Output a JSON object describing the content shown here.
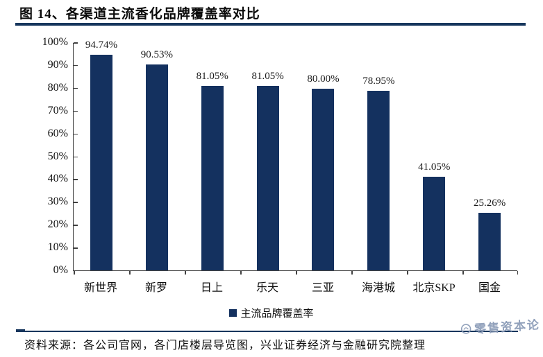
{
  "header": {
    "title": "图 14、各渠道主流香化品牌覆盖率对比"
  },
  "chart_data": {
    "type": "bar",
    "title": "各渠道主流香化品牌覆盖率对比",
    "categories": [
      "新世界",
      "新罗",
      "日上",
      "乐天",
      "三亚",
      "海港城",
      "北京SKP",
      "国金"
    ],
    "values": [
      94.74,
      90.53,
      81.05,
      81.05,
      80.0,
      78.95,
      41.05,
      25.26
    ],
    "value_labels": [
      "94.74%",
      "90.53%",
      "81.05%",
      "81.05%",
      "80.00%",
      "78.95%",
      "41.05%",
      "25.26%"
    ],
    "series_name": "主流品牌覆盖率",
    "xlabel": "",
    "ylabel": "",
    "ylim": [
      0,
      100
    ],
    "ytick_step": 10,
    "yticks": [
      "0%",
      "10%",
      "20%",
      "30%",
      "40%",
      "50%",
      "60%",
      "70%",
      "80%",
      "90%",
      "100%"
    ],
    "grid": false,
    "legend_position": "bottom",
    "bar_color": "#14315F"
  },
  "legend": {
    "label": "主流品牌覆盖率"
  },
  "footer": {
    "source": "资料来源：各公司官网，各门店楼层导览图，兴业证券经济与金融研究院整理"
  },
  "watermark": {
    "text": "零售资本论"
  },
  "colors": {
    "bar_navy": "#14315F",
    "rule_navy": "#17365D",
    "axis_gray": "#404040",
    "watermark_blue_gray": "#8C9CB8"
  }
}
